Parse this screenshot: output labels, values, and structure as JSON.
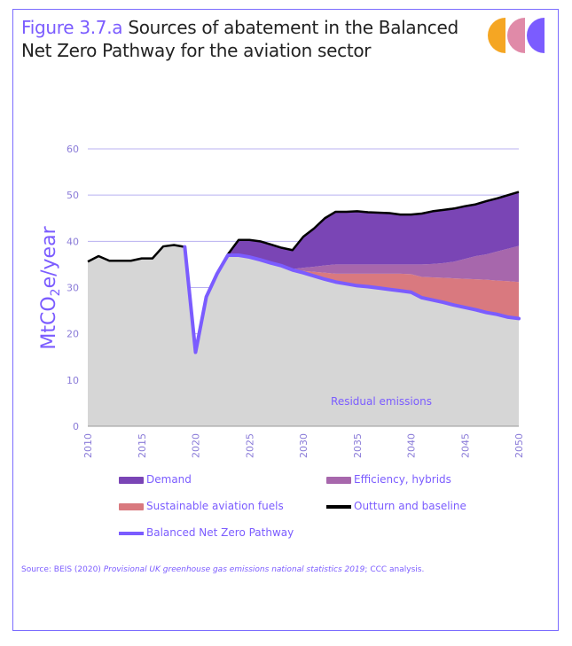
{
  "figure": {
    "number": "Figure 3.7.a",
    "title": "Sources of abatement in the Balanced Net Zero Pathway for the aviation sector",
    "source_prefix": "Source: BEIS (2020) ",
    "source_italic": "Provisional UK greenhouse gas emissions national statistics 2019",
    "source_suffix": "; CCC analysis."
  },
  "logo": {
    "colors": [
      "#f5a623",
      "#e08aa8",
      "#7b5cff"
    ]
  },
  "chart_data": {
    "type": "area",
    "ylabel": "MtCO2e/year",
    "ylim": [
      0,
      60
    ],
    "yticks": [
      0,
      10,
      20,
      30,
      40,
      50,
      60
    ],
    "xlim": [
      2010,
      2050
    ],
    "xticks": [
      2010,
      2015,
      2020,
      2025,
      2030,
      2035,
      2040,
      2045,
      2050
    ],
    "grid": true,
    "annotation": "Residual emissions",
    "colors": {
      "residual": "#d6d6d6",
      "saf": "#d9797f",
      "efficiency": "#a767ac",
      "demand": "#7a45b5",
      "outturn": "#000000",
      "pathway": "#7b5cff",
      "grid": "#b8b0f0",
      "axis_text": "#8a7bd8"
    },
    "outturn": {
      "x": [
        2010,
        2011,
        2012,
        2013,
        2014,
        2015,
        2016,
        2017,
        2018,
        2019,
        2020,
        2021,
        2022,
        2023,
        2024,
        2025,
        2026,
        2027,
        2028,
        2029,
        2030,
        2031,
        2032,
        2033,
        2034,
        2035,
        2036,
        2037,
        2038,
        2039,
        2040,
        2041,
        2042,
        2043,
        2044,
        2045,
        2046,
        2047,
        2048,
        2049,
        2050
      ],
      "y": [
        35.6,
        36.8,
        35.8,
        35.8,
        35.8,
        36.3,
        36.3,
        38.9,
        39.2,
        38.8,
        16.0,
        28.0,
        33.0,
        37.2,
        40.3,
        40.3,
        40.0,
        39.3,
        38.6,
        38.1,
        41.0,
        42.8,
        45.0,
        46.4,
        46.4,
        46.5,
        46.3,
        46.2,
        46.1,
        45.8,
        45.8,
        46.0,
        46.5,
        46.8,
        47.1,
        47.6,
        48.0,
        48.7,
        49.3,
        50.0,
        50.7
      ]
    },
    "abatement_years": [
      2023,
      2024,
      2025,
      2026,
      2027,
      2028,
      2029,
      2030,
      2031,
      2032,
      2033,
      2034,
      2035,
      2036,
      2037,
      2038,
      2039,
      2040,
      2041,
      2042,
      2043,
      2044,
      2045,
      2046,
      2047,
      2048,
      2049,
      2050
    ],
    "pathway": [
      37.0,
      37.0,
      36.6,
      36.0,
      35.3,
      34.7,
      33.8,
      33.2,
      32.5,
      31.8,
      31.2,
      30.8,
      30.4,
      30.2,
      29.9,
      29.6,
      29.3,
      29.0,
      27.8,
      27.3,
      26.8,
      26.2,
      25.7,
      25.2,
      24.6,
      24.2,
      23.6,
      23.3
    ],
    "efficiency_hybrids_top": [
      37.0,
      37.0,
      36.6,
      36.0,
      35.3,
      34.7,
      33.9,
      33.6,
      33.4,
      33.2,
      33.0,
      33.0,
      33.0,
      33.0,
      33.0,
      33.0,
      33.0,
      32.9,
      32.3,
      32.2,
      32.1,
      32.0,
      31.9,
      31.8,
      31.7,
      31.5,
      31.4,
      31.2
    ],
    "sustainable_aviation_fuels_top": [
      37.0,
      37.0,
      36.6,
      36.0,
      35.3,
      34.7,
      34.0,
      34.3,
      34.5,
      34.8,
      35.0,
      35.0,
      35.0,
      35.0,
      35.0,
      35.0,
      35.0,
      35.0,
      35.0,
      35.1,
      35.3,
      35.6,
      36.2,
      36.8,
      37.2,
      37.8,
      38.4,
      39.0
    ],
    "demand_top": [
      37.2,
      40.3,
      40.3,
      40.0,
      39.3,
      38.6,
      38.1,
      41.0,
      42.8,
      45.0,
      46.4,
      46.4,
      46.5,
      46.3,
      46.2,
      46.1,
      45.8,
      45.8,
      46.0,
      46.5,
      46.8,
      47.1,
      47.6,
      48.0,
      48.7,
      49.3,
      50.0,
      50.7
    ],
    "legend": [
      {
        "label": "Demand",
        "kind": "box",
        "color": "#7a45b5"
      },
      {
        "label": "Efficiency, hybrids",
        "kind": "box",
        "color": "#a767ac"
      },
      {
        "label": "Sustainable aviation fuels",
        "kind": "box",
        "color": "#d9797f"
      },
      {
        "label": "Outturn and baseline",
        "kind": "line",
        "color": "#000000"
      },
      {
        "label": "Balanced Net Zero Pathway",
        "kind": "line",
        "color": "#7b5cff"
      }
    ]
  }
}
